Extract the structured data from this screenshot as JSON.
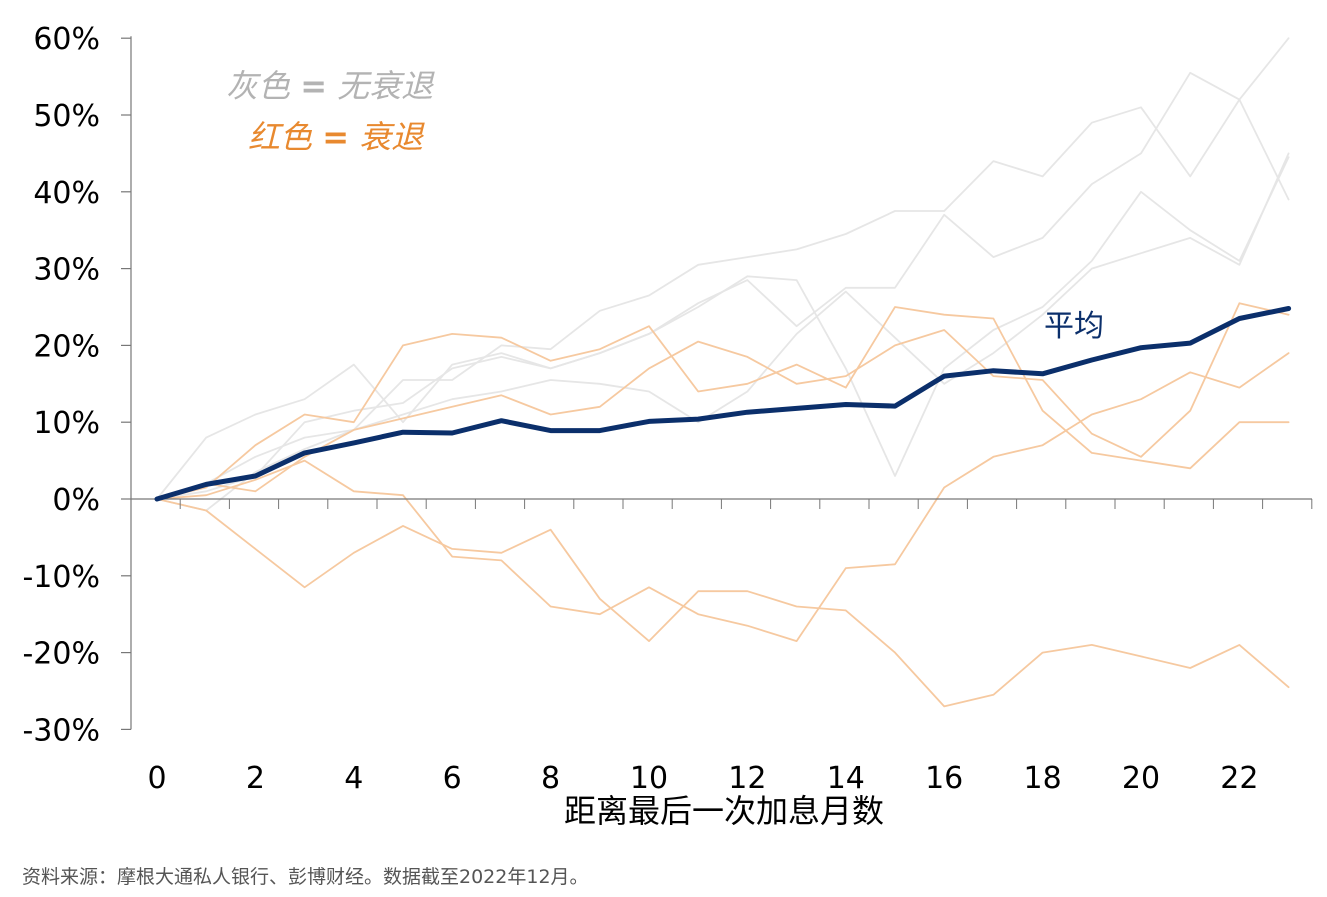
{
  "chart_data": {
    "type": "line",
    "xlabel": "距离最后一次加息月数",
    "ylabel": "",
    "xlim": [
      0,
      23
    ],
    "ylim": [
      -30,
      60
    ],
    "x_ticks": [
      0,
      2,
      4,
      6,
      8,
      10,
      12,
      14,
      16,
      18,
      20,
      22
    ],
    "y_ticks": [
      -30,
      -20,
      -10,
      0,
      10,
      20,
      30,
      40,
      50,
      60
    ],
    "y_tick_labels": [
      "-30%",
      "-20%",
      "-10%",
      "0%",
      "10%",
      "20%",
      "30%",
      "40%",
      "50%",
      "60%"
    ],
    "legend": {
      "gray": {
        "label": "灰色",
        "eq": "=",
        "meaning": "无衰退",
        "color": "#b3b3b3"
      },
      "orange": {
        "label": "红色",
        "eq": "=",
        "meaning": "衰退",
        "color": "#e8892f"
      }
    },
    "average_label": "平均",
    "colors": {
      "gray": "#e6e6e6",
      "orange": "#f6c9a0",
      "average": "#0b2f6b",
      "axis": "#777777"
    },
    "series": [
      {
        "group": "gray",
        "values": [
          0,
          8,
          11,
          13,
          17.5,
          10,
          17.5,
          19,
          17,
          19,
          21.5,
          25,
          29,
          28.5,
          17,
          3,
          17,
          22,
          25,
          31,
          40,
          35,
          31,
          44.5
        ]
      },
      {
        "group": "gray",
        "values": [
          0,
          2,
          5.5,
          8,
          9,
          15.5,
          15.5,
          20,
          19.5,
          24.5,
          26.5,
          30.5,
          31.5,
          32.5,
          34.5,
          37.5,
          37.5,
          44,
          42,
          49,
          51,
          42,
          52,
          39
        ]
      },
      {
        "group": "gray",
        "values": [
          0,
          1,
          3,
          10,
          11.5,
          12.5,
          17,
          18.5,
          17,
          19,
          21.5,
          25.5,
          28.5,
          22.5,
          27.5,
          27.5,
          37,
          31.5,
          34,
          41,
          45,
          55.5,
          52,
          60
        ]
      },
      {
        "group": "gray",
        "values": [
          0,
          -1.5,
          3.5,
          6.5,
          9,
          11,
          13,
          14,
          15.5,
          15,
          14,
          10,
          14,
          21.5,
          27,
          21,
          15,
          19,
          24,
          30,
          32,
          34,
          30.5,
          45
        ]
      },
      {
        "group": "orange",
        "values": [
          0,
          1.5,
          7,
          11,
          10,
          20,
          21.5,
          21,
          18,
          19.5,
          22.5,
          14,
          15,
          17.5,
          14.5,
          25,
          24,
          23.5,
          11.5,
          6,
          5,
          4,
          10,
          10
        ]
      },
      {
        "group": "orange",
        "values": [
          0,
          2,
          1,
          5.5,
          9,
          10.5,
          12,
          13.5,
          11,
          12,
          17,
          20.5,
          18.5,
          15,
          16,
          20,
          22,
          16,
          15.5,
          8.5,
          5.5,
          11.5,
          25.5,
          24
        ]
      },
      {
        "group": "orange",
        "values": [
          0,
          -1.5,
          -6.5,
          -11.5,
          -7,
          -3.5,
          -6.5,
          -7,
          -4,
          -13,
          -18.5,
          -12,
          -12,
          -14,
          -14.5,
          -20,
          -27,
          -25.5,
          -20,
          -19,
          -20.5,
          -22,
          -19,
          -24.5
        ]
      },
      {
        "group": "orange",
        "values": [
          0,
          0.5,
          2.5,
          5,
          1,
          0.5,
          -7.5,
          -8,
          -14,
          -15,
          -11.5,
          -15,
          -16.5,
          -18.5,
          -9,
          -8.5,
          1.5,
          5.5,
          7,
          11,
          13,
          16.5,
          14.5,
          19
        ]
      },
      {
        "group": "average",
        "values": [
          0,
          1.9,
          3,
          6,
          7.3,
          8.7,
          8.6,
          10.2,
          8.9,
          8.9,
          10.1,
          10.4,
          11.3,
          11.8,
          12.3,
          12.1,
          16,
          16.7,
          16.3,
          18.1,
          19.7,
          20.3,
          23.5,
          24.8
        ]
      }
    ]
  },
  "source": "资料来源：摩根大通私人银行、彭博财经。数据截至2022年12月。"
}
